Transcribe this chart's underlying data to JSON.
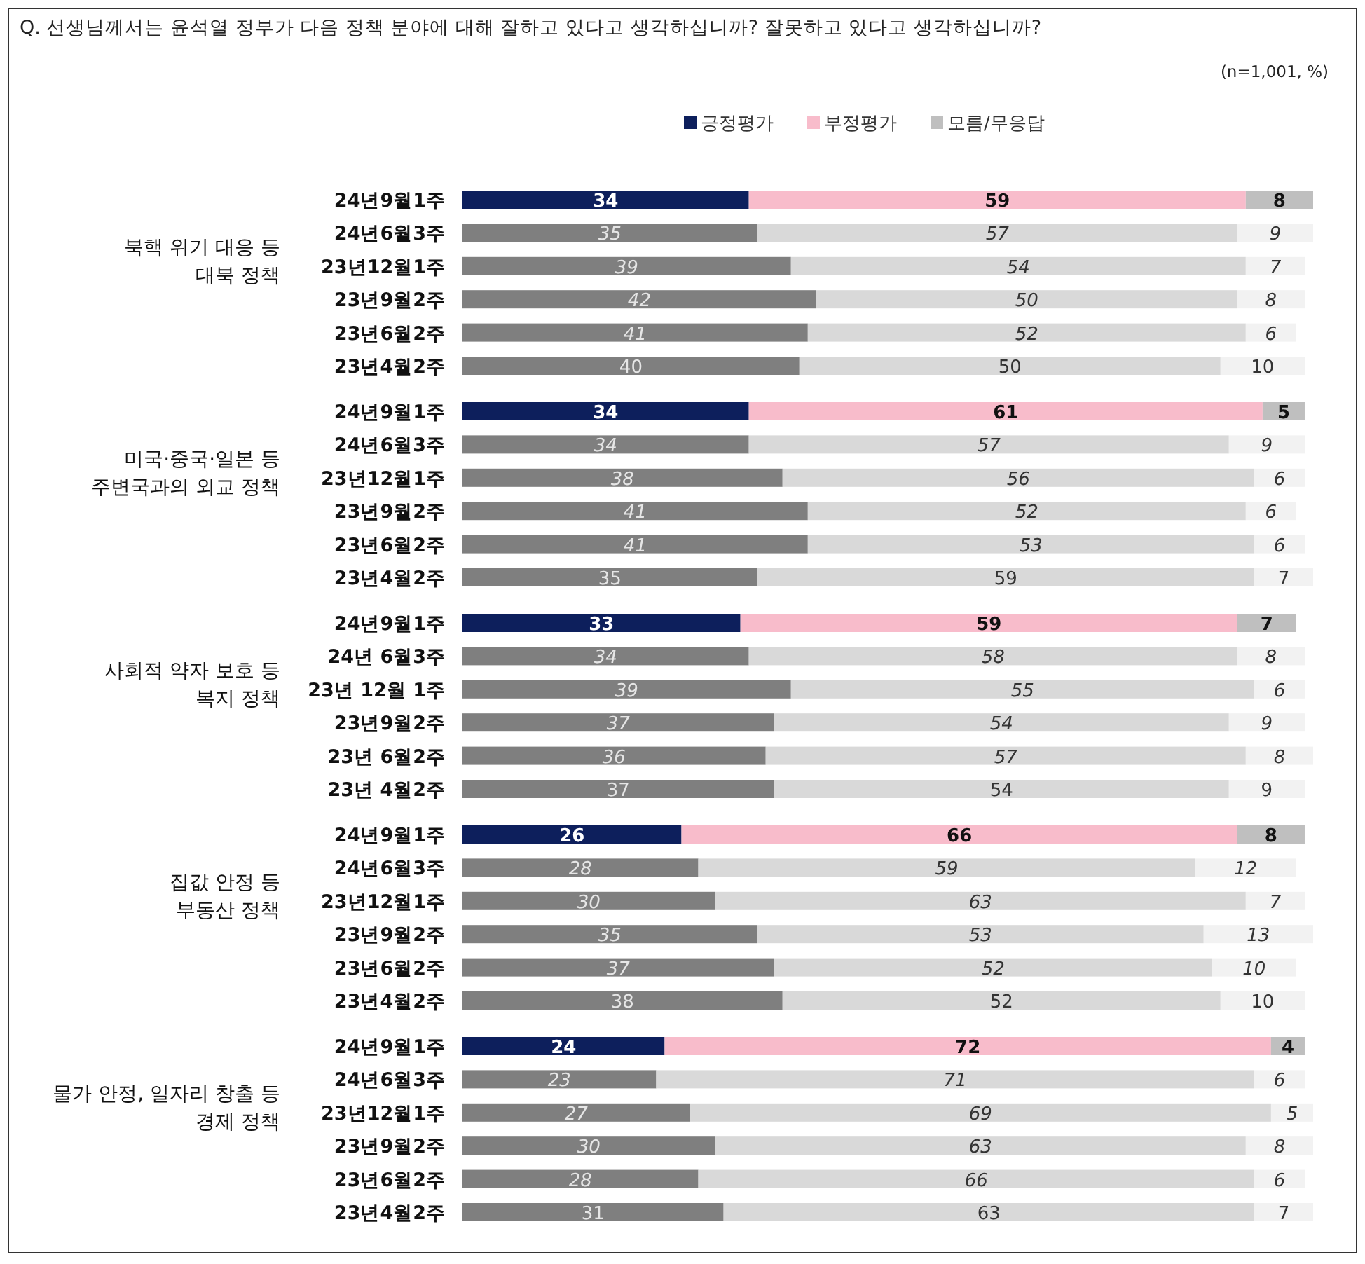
{
  "chart_data": [
    {
      "type": "bar",
      "orientation": "horizontal",
      "stacked": true,
      "data_labels": true,
      "legend": "top",
      "title": "Q. 선생님께서는 윤석열 정부가 다음 정책 분야에 대해 잘하고 있다고 생각하십니까? 잘못하고 있다고 생각하십니까?",
      "annotations": [
        "(n=1,001,  %)"
      ],
      "ylabel": "북핵 위기 대응 등\n대북 정책",
      "categories": [
        "24년9월1주",
        "24년6월3주",
        "23년12월1주",
        "23년9월2주",
        "23년6월2주",
        "23년4월2주"
      ],
      "series": [
        {
          "name": "긍정평가",
          "color": "#0d1f5c",
          "colors": [
            "#0d1f5c",
            "#7f7f7f",
            "#7f7f7f",
            "#7f7f7f",
            "#7f7f7f",
            "#7f7f7f"
          ],
          "values": [
            34,
            35,
            39,
            42,
            41,
            40
          ]
        },
        {
          "name": "부정평가",
          "color": "#f8bccb",
          "colors": [
            "#f8bccb",
            "#d9d9d9",
            "#d9d9d9",
            "#d9d9d9",
            "#d9d9d9",
            "#d9d9d9"
          ],
          "values": [
            59,
            57,
            54,
            50,
            52,
            50
          ]
        },
        {
          "name": "모름/무응답",
          "color": "#bfbfbf",
          "colors": [
            "#bfbfbf",
            "#f2f2f2",
            "#f2f2f2",
            "#f2f2f2",
            "#f2f2f2",
            "#f2f2f2"
          ],
          "values": [
            8,
            9,
            7,
            8,
            6,
            10
          ]
        }
      ]
    },
    {
      "type": "bar",
      "orientation": "horizontal",
      "stacked": true,
      "data_labels": true,
      "ylabel": "미국·중국·일본 등\n주변국과의 외교 정책",
      "categories": [
        "24년9월1주",
        "24년6월3주",
        "23년12월1주",
        "23년9월2주",
        "23년6월2주",
        "23년4월2주"
      ],
      "series": [
        {
          "colors": [
            "#0d1f5c",
            "#7f7f7f",
            "#7f7f7f",
            "#7f7f7f",
            "#7f7f7f",
            "#7f7f7f"
          ],
          "values": [
            34,
            34,
            38,
            41,
            41,
            35
          ]
        },
        {
          "colors": [
            "#f8bccb",
            "#d9d9d9",
            "#d9d9d9",
            "#d9d9d9",
            "#d9d9d9",
            "#d9d9d9"
          ],
          "values": [
            61,
            57,
            56,
            52,
            53,
            59
          ]
        },
        {
          "colors": [
            "#bfbfbf",
            "#f2f2f2",
            "#f2f2f2",
            "#f2f2f2",
            "#f2f2f2",
            "#f2f2f2"
          ],
          "values": [
            5,
            9,
            6,
            6,
            6,
            7
          ]
        }
      ]
    },
    {
      "type": "bar",
      "orientation": "horizontal",
      "stacked": true,
      "data_labels": true,
      "ylabel": "사회적 약자 보호 등\n복지 정책",
      "categories": [
        "24년9월1주",
        "24년 6월3주",
        "23년 12월 1주",
        "23년9월2주",
        "23년 6월2주",
        "23년 4월2주"
      ],
      "series": [
        {
          "colors": [
            "#0d1f5c",
            "#7f7f7f",
            "#7f7f7f",
            "#7f7f7f",
            "#7f7f7f",
            "#7f7f7f"
          ],
          "values": [
            33,
            34,
            39,
            37,
            36,
            37
          ]
        },
        {
          "colors": [
            "#f8bccb",
            "#d9d9d9",
            "#d9d9d9",
            "#d9d9d9",
            "#d9d9d9",
            "#d9d9d9"
          ],
          "values": [
            59,
            58,
            55,
            54,
            57,
            54
          ]
        },
        {
          "colors": [
            "#bfbfbf",
            "#f2f2f2",
            "#f2f2f2",
            "#f2f2f2",
            "#f2f2f2",
            "#f2f2f2"
          ],
          "values": [
            7,
            8,
            6,
            9,
            8,
            9
          ]
        }
      ]
    },
    {
      "type": "bar",
      "orientation": "horizontal",
      "stacked": true,
      "data_labels": true,
      "ylabel": "집값 안정 등\n부동산 정책",
      "categories": [
        "24년9월1주",
        "24년6월3주",
        "23년12월1주",
        "23년9월2주",
        "23년6월2주",
        "23년4월2주"
      ],
      "series": [
        {
          "colors": [
            "#0d1f5c",
            "#7f7f7f",
            "#7f7f7f",
            "#7f7f7f",
            "#7f7f7f",
            "#7f7f7f"
          ],
          "values": [
            26,
            28,
            30,
            35,
            37,
            38
          ]
        },
        {
          "colors": [
            "#f8bccb",
            "#d9d9d9",
            "#d9d9d9",
            "#d9d9d9",
            "#d9d9d9",
            "#d9d9d9"
          ],
          "values": [
            66,
            59,
            63,
            53,
            52,
            52
          ]
        },
        {
          "colors": [
            "#bfbfbf",
            "#f2f2f2",
            "#f2f2f2",
            "#f2f2f2",
            "#f2f2f2",
            "#f2f2f2"
          ],
          "values": [
            8,
            12,
            7,
            13,
            10,
            10
          ]
        }
      ]
    },
    {
      "type": "bar",
      "orientation": "horizontal",
      "stacked": true,
      "data_labels": true,
      "ylabel": "물가 안정, 일자리 창출 등\n경제 정책",
      "categories": [
        "24년9월1주",
        "24년6월3주",
        "23년12월1주",
        "23년9월2주",
        "23년6월2주",
        "23년4월2주"
      ],
      "series": [
        {
          "colors": [
            "#0d1f5c",
            "#7f7f7f",
            "#7f7f7f",
            "#7f7f7f",
            "#7f7f7f",
            "#7f7f7f"
          ],
          "values": [
            24,
            23,
            27,
            30,
            28,
            31
          ]
        },
        {
          "colors": [
            "#f8bccb",
            "#d9d9d9",
            "#d9d9d9",
            "#d9d9d9",
            "#d9d9d9",
            "#d9d9d9"
          ],
          "values": [
            72,
            71,
            69,
            63,
            66,
            63
          ]
        },
        {
          "colors": [
            "#bfbfbf",
            "#f2f2f2",
            "#f2f2f2",
            "#f2f2f2",
            "#f2f2f2",
            "#f2f2f2"
          ],
          "values": [
            4,
            6,
            5,
            8,
            6,
            7
          ]
        }
      ]
    }
  ]
}
